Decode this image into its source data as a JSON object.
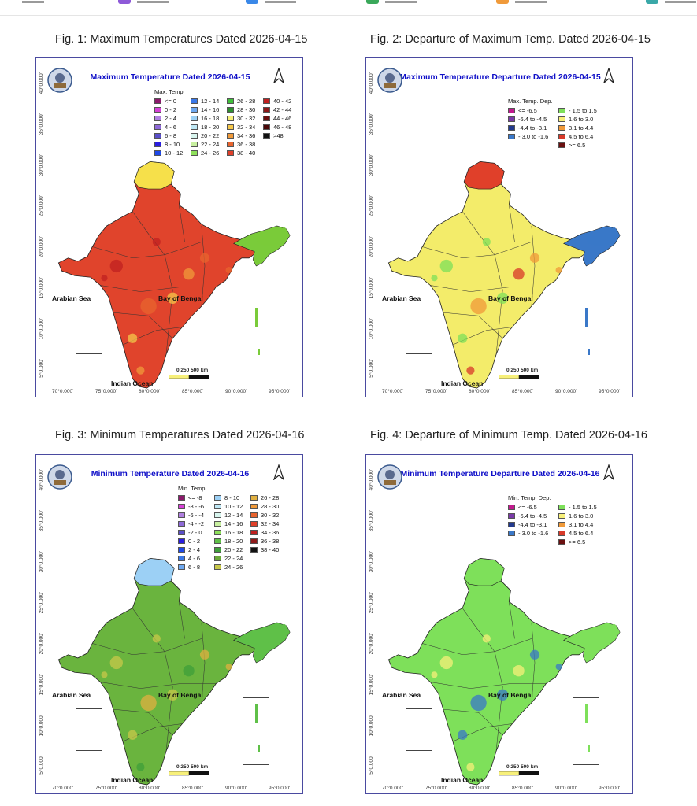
{
  "figures": [
    {
      "caption": "Fig. 1: Maximum Temperatures Dated 2026-04-15",
      "map_title": "Maximum Temperature Dated 2026-04-15",
      "legend_title": "Max. Temp",
      "legend_columns": 4,
      "legend": [
        {
          "label": "<= 0",
          "color": "#8b1a6b"
        },
        {
          "label": "0 - 2",
          "color": "#d63fd6"
        },
        {
          "label": "2 - 4",
          "color": "#b07fe0"
        },
        {
          "label": "4 - 6",
          "color": "#8e6ad8"
        },
        {
          "label": "6 - 8",
          "color": "#5a4fc8"
        },
        {
          "label": "8 - 10",
          "color": "#2a1ee0"
        },
        {
          "label": "10 - 12",
          "color": "#1f49e8"
        },
        {
          "label": "12 - 14",
          "color": "#3a78e8"
        },
        {
          "label": "14 - 16",
          "color": "#6ea8f0"
        },
        {
          "label": "16 - 18",
          "color": "#9cd0f5"
        },
        {
          "label": "18 - 20",
          "color": "#bfe8f5"
        },
        {
          "label": "20 - 22",
          "color": "#d8f5ee"
        },
        {
          "label": "22 - 24",
          "color": "#c8f0a0"
        },
        {
          "label": "24 - 26",
          "color": "#8ee05a"
        },
        {
          "label": "26 - 28",
          "color": "#3fbf3a"
        },
        {
          "label": "28 - 30",
          "color": "#2e8f2e"
        },
        {
          "label": "30 - 32",
          "color": "#f7f07a"
        },
        {
          "label": "32 - 34",
          "color": "#f6c84a"
        },
        {
          "label": "34 - 36",
          "color": "#f09a3a"
        },
        {
          "label": "36 - 38",
          "color": "#e8642e"
        },
        {
          "label": "38 - 40",
          "color": "#e0402a"
        },
        {
          "label": "40 - 42",
          "color": "#c02020"
        },
        {
          "label": "42 - 44",
          "color": "#8e1a1a"
        },
        {
          "label": "44 - 46",
          "color": "#6a1010"
        },
        {
          "label": "46 - 48",
          "color": "#4a0808"
        },
        {
          "label": ">48",
          "color": "#111111"
        }
      ],
      "fill": "#e0442c",
      "north_fill": "#f6e04a",
      "northeast_fill": "#7acb3a",
      "spot_colors": [
        "#c02020",
        "#e8642e",
        "#f09a3a",
        "#f6c84a"
      ]
    },
    {
      "caption": "Fig. 2: Departure of Maximum Temp. Dated 2026-04-15",
      "map_title": "Maximum Temperature Departure Dated 2026-04-15",
      "legend_title": "Max. Temp. Dep.",
      "legend_columns": 2,
      "legend": [
        {
          "label": "<= -6.5",
          "color": "#c21a8e"
        },
        {
          "label": "-6.4 to -4.5",
          "color": "#7a3aa8"
        },
        {
          "label": "-4.4 to -3.1",
          "color": "#223a8e"
        },
        {
          "label": "- 3.0 to -1.6",
          "color": "#3a78c8"
        },
        {
          "label": "- 1.5 to 1.5",
          "color": "#7ee05a"
        },
        {
          "label": "1.6 to  3.0",
          "color": "#f7f07a"
        },
        {
          "label": "3.1 to 4.4",
          "color": "#f09a3a"
        },
        {
          "label": "4.5 to 6.4",
          "color": "#d83a2a"
        },
        {
          "label": ">= 6.5",
          "color": "#6a1010"
        }
      ],
      "fill": "#f3ec6a",
      "north_fill": "#e0402a",
      "northeast_fill": "#3a78c8",
      "spot_colors": [
        "#7ee05a",
        "#f09a3a",
        "#d83a2a",
        "#7ee05a"
      ]
    },
    {
      "caption": "Fig. 3: Minimum Temperatures Dated 2026-04-16",
      "map_title": "Minimum Temperature Dated 2026-04-16",
      "legend_title": "Min. Temp",
      "legend_columns": 3,
      "legend": [
        {
          "label": "<= -8",
          "color": "#8b1a6b"
        },
        {
          "label": "-8 - -6",
          "color": "#d63fd6"
        },
        {
          "label": "-6 - -4",
          "color": "#b07fe0"
        },
        {
          "label": "-4 - -2",
          "color": "#8e6ad8"
        },
        {
          "label": "-2 - 0",
          "color": "#5a4fc8"
        },
        {
          "label": "0 - 2",
          "color": "#2a1ee0"
        },
        {
          "label": "2 - 4",
          "color": "#1f49e8"
        },
        {
          "label": "4 - 6",
          "color": "#3a78e8"
        },
        {
          "label": "6 - 8",
          "color": "#6ea8f0"
        },
        {
          "label": "8 - 10",
          "color": "#9cd0f5"
        },
        {
          "label": "10 - 12",
          "color": "#bfe8f5"
        },
        {
          "label": "12 - 14",
          "color": "#d8f5ee"
        },
        {
          "label": "14 - 16",
          "color": "#c8f0a0"
        },
        {
          "label": "16 - 18",
          "color": "#8ee05a"
        },
        {
          "label": "18 - 20",
          "color": "#5fc048"
        },
        {
          "label": "20 - 22",
          "color": "#3f9f3a"
        },
        {
          "label": "22 - 24",
          "color": "#6aa83a"
        },
        {
          "label": "24 - 26",
          "color": "#c8c84a"
        },
        {
          "label": "26 - 28",
          "color": "#e0b040"
        },
        {
          "label": "28 - 30",
          "color": "#f09a3a"
        },
        {
          "label": "30 - 32",
          "color": "#e8642e"
        },
        {
          "label": "32 - 34",
          "color": "#e0402a"
        },
        {
          "label": "34 - 36",
          "color": "#c02020"
        },
        {
          "label": "36 - 38",
          "color": "#8e1a1a"
        },
        {
          "label": "38 - 40",
          "color": "#111111"
        }
      ],
      "fill": "#6ab43e",
      "north_fill": "#9cd0f5",
      "northeast_fill": "#5fc048",
      "spot_colors": [
        "#c8c84a",
        "#e0b040",
        "#3f9f3a",
        "#c8c84a"
      ]
    },
    {
      "caption": "Fig. 4: Departure of Minimum Temp. Dated 2026-04-16",
      "map_title": "Minimum Temperature Departure Dated 2026-04-16",
      "legend_title": "Min. Temp. Dep.",
      "legend_columns": 2,
      "legend": [
        {
          "label": "<= -6.5",
          "color": "#c21a8e"
        },
        {
          "label": "-6.4 to -4.5",
          "color": "#7a3aa8"
        },
        {
          "label": "-4.4 to -3.1",
          "color": "#223a8e"
        },
        {
          "label": "- 3.0 to -1.6",
          "color": "#3a78c8"
        },
        {
          "label": "- 1.5 to 1.5",
          "color": "#7ee05a"
        },
        {
          "label": "1.6 to  3.0",
          "color": "#f7f07a"
        },
        {
          "label": "3.1 to 4.4",
          "color": "#f09a3a"
        },
        {
          "label": "4.5 to 6.4",
          "color": "#d83a2a"
        },
        {
          "label": ">= 6.5",
          "color": "#6a1010"
        }
      ],
      "fill": "#7ee05a",
      "north_fill": "#7ee05a",
      "northeast_fill": "#7ee05a",
      "spot_colors": [
        "#f7f07a",
        "#3a78c8",
        "#f7f07a",
        "#3a78c8"
      ]
    }
  ],
  "common": {
    "arabian_sea": "Arabian Sea",
    "bay_of_bengal": "Bay of Bengal",
    "indian_ocean": "Indian Ocean",
    "scale_labels": "0     250    500 km",
    "lat_labels": [
      "40°0.000'",
      "35°0.000'",
      "30°0.000'",
      "25°0.000'",
      "20°0.000'",
      "15°0.000'",
      "10°0.000'",
      "5°0.000'"
    ],
    "lon_labels": [
      "70°0.000'",
      "75°0.000'",
      "80°0.000'",
      "85°0.000'",
      "90°0.000'",
      "95°0.000'"
    ]
  },
  "topbar_colors": [
    "#8e5ad8",
    "#3a88e8",
    "#3aa85a",
    "#f09a3a",
    "#3aa8a8"
  ]
}
